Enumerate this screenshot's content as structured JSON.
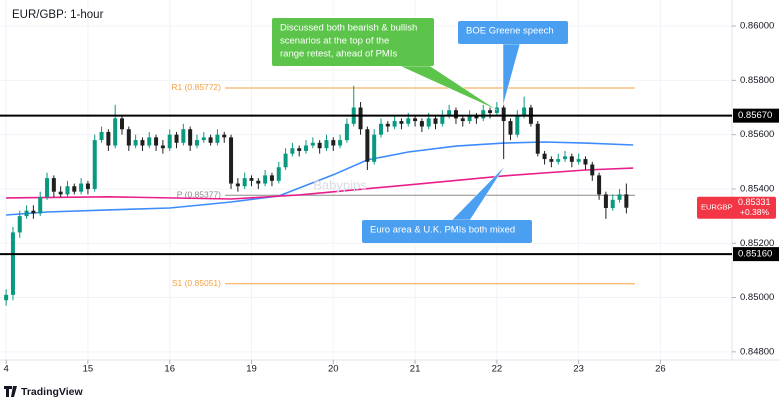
{
  "chart_data": {
    "type": "candlestick",
    "title": "EUR/GBP: 1-hour",
    "watermark": "Babypips",
    "branding": "TradingView",
    "x": [
      0,
      2,
      4,
      6,
      8,
      10,
      12,
      14,
      16,
      18,
      20,
      22,
      24,
      26,
      28,
      30,
      32,
      34,
      36,
      38,
      40,
      42,
      44,
      46,
      48,
      50,
      52,
      54,
      56,
      58,
      60,
      62,
      64,
      66,
      68,
      70,
      72,
      74,
      76,
      78,
      80,
      82,
      84,
      86,
      88,
      90,
      92,
      94,
      96,
      98,
      100,
      102,
      104,
      106,
      108,
      110,
      112,
      114,
      116,
      118,
      120,
      122,
      124,
      126,
      128,
      130,
      132,
      134,
      136,
      138,
      140,
      142,
      144,
      146,
      148,
      150,
      152,
      154,
      156,
      158,
      160,
      162,
      164,
      166,
      168,
      170,
      172,
      174,
      176,
      178,
      180,
      182
    ],
    "open": [
      0.8499,
      0.8501,
      0.8524,
      0.853,
      0.8532,
      0.8531,
      0.8537,
      0.8544,
      0.8539,
      0.8538,
      0.8541,
      0.8539,
      0.8542,
      0.854,
      0.8558,
      0.8561,
      0.8556,
      0.8566,
      0.8562,
      0.8556,
      0.8558,
      0.8556,
      0.8559,
      0.8556,
      0.8555,
      0.856,
      0.8557,
      0.8562,
      0.8556,
      0.8558,
      0.8559,
      0.8557,
      0.856,
      0.8559,
      0.8542,
      0.8541,
      0.8544,
      0.8543,
      0.8542,
      0.8545,
      0.8543,
      0.8548,
      0.8553,
      0.8555,
      0.8554,
      0.8556,
      0.8557,
      0.8555,
      0.8558,
      0.8556,
      0.8558,
      0.8564,
      0.857,
      0.8562,
      0.855,
      0.856,
      0.8564,
      0.8563,
      0.8565,
      0.8564,
      0.8566,
      0.8565,
      0.8563,
      0.8566,
      0.8564,
      0.8567,
      0.8569,
      0.8566,
      0.8565,
      0.8567,
      0.8566,
      0.8569,
      0.8568,
      0.857,
      0.8565,
      0.856,
      0.8567,
      0.857,
      0.8564,
      0.8553,
      0.8551,
      0.855,
      0.8551,
      0.8552,
      0.855,
      0.8551,
      0.8549,
      0.8545,
      0.8538,
      0.8533,
      0.8536,
      0.8538
    ],
    "high": [
      0.8503,
      0.8526,
      0.8532,
      0.8534,
      0.8534,
      0.8539,
      0.8546,
      0.8545,
      0.8541,
      0.8543,
      0.8542,
      0.8544,
      0.8543,
      0.856,
      0.8563,
      0.8562,
      0.8571,
      0.8567,
      0.8563,
      0.856,
      0.8559,
      0.8561,
      0.856,
      0.8558,
      0.8562,
      0.8561,
      0.8564,
      0.8563,
      0.856,
      0.8561,
      0.856,
      0.8562,
      0.8561,
      0.856,
      0.8544,
      0.8546,
      0.8545,
      0.8544,
      0.8547,
      0.8546,
      0.855,
      0.8555,
      0.8557,
      0.8556,
      0.8558,
      0.8559,
      0.8558,
      0.856,
      0.8559,
      0.856,
      0.8566,
      0.8578,
      0.8572,
      0.8563,
      0.8562,
      0.8566,
      0.8565,
      0.8567,
      0.8566,
      0.8568,
      0.8567,
      0.8566,
      0.8568,
      0.8567,
      0.8569,
      0.8571,
      0.857,
      0.8567,
      0.8569,
      0.8568,
      0.8571,
      0.857,
      0.8572,
      0.8571,
      0.8566,
      0.8569,
      0.8574,
      0.8571,
      0.8565,
      0.8554,
      0.8552,
      0.8553,
      0.8554,
      0.8553,
      0.8553,
      0.8552,
      0.855,
      0.8546,
      0.8539,
      0.8538,
      0.854,
      0.8542
    ],
    "low": [
      0.8497,
      0.8499,
      0.8522,
      0.8529,
      0.8529,
      0.853,
      0.8536,
      0.8537,
      0.8537,
      0.8537,
      0.8538,
      0.8538,
      0.8538,
      0.8539,
      0.8557,
      0.8554,
      0.8555,
      0.856,
      0.8554,
      0.8555,
      0.8554,
      0.8555,
      0.8554,
      0.8553,
      0.8554,
      0.8555,
      0.8556,
      0.8554,
      0.8555,
      0.8557,
      0.8556,
      0.8556,
      0.8557,
      0.854,
      0.8539,
      0.854,
      0.8541,
      0.854,
      0.8541,
      0.8541,
      0.8542,
      0.8547,
      0.8552,
      0.8552,
      0.8553,
      0.8555,
      0.8553,
      0.8554,
      0.8554,
      0.8555,
      0.8557,
      0.8563,
      0.856,
      0.8547,
      0.8549,
      0.8559,
      0.8561,
      0.8562,
      0.8562,
      0.8563,
      0.8563,
      0.8561,
      0.8562,
      0.8562,
      0.8563,
      0.8566,
      0.8564,
      0.8563,
      0.8564,
      0.8564,
      0.8565,
      0.8566,
      0.8567,
      0.8551,
      0.8558,
      0.8559,
      0.8566,
      0.8563,
      0.8552,
      0.8549,
      0.8548,
      0.8549,
      0.855,
      0.8548,
      0.8549,
      0.8547,
      0.8543,
      0.8536,
      0.8529,
      0.8532,
      0.8535,
      0.8531
    ],
    "close": [
      0.8501,
      0.8524,
      0.853,
      0.8532,
      0.8531,
      0.8537,
      0.8544,
      0.8539,
      0.8538,
      0.8541,
      0.8539,
      0.8542,
      0.854,
      0.8558,
      0.8561,
      0.8556,
      0.8566,
      0.8562,
      0.8556,
      0.8558,
      0.8556,
      0.8559,
      0.8556,
      0.8555,
      0.856,
      0.8557,
      0.8562,
      0.8556,
      0.8558,
      0.8559,
      0.8557,
      0.856,
      0.8559,
      0.8542,
      0.8541,
      0.8544,
      0.8543,
      0.8542,
      0.8545,
      0.8543,
      0.8548,
      0.8553,
      0.8555,
      0.8554,
      0.8556,
      0.8557,
      0.8555,
      0.8558,
      0.8556,
      0.8558,
      0.8564,
      0.857,
      0.8562,
      0.855,
      0.856,
      0.8564,
      0.8563,
      0.8565,
      0.8564,
      0.8566,
      0.8565,
      0.8563,
      0.8566,
      0.8564,
      0.8567,
      0.8569,
      0.8566,
      0.8565,
      0.8567,
      0.8566,
      0.8569,
      0.8568,
      0.857,
      0.8565,
      0.856,
      0.8567,
      0.857,
      0.8564,
      0.8553,
      0.8551,
      0.855,
      0.8551,
      0.8552,
      0.855,
      0.8551,
      0.8549,
      0.8545,
      0.8538,
      0.8533,
      0.8536,
      0.8538,
      0.85331
    ],
    "up_color": "#089981",
    "down_color": "#1f1f1f",
    "xlim": [
      -1.8,
      213
    ],
    "xticks": [
      {
        "value": 0,
        "label": "4"
      },
      {
        "value": 24,
        "label": "15"
      },
      {
        "value": 48,
        "label": "16"
      },
      {
        "value": 72,
        "label": "19"
      },
      {
        "value": 96,
        "label": "20"
      },
      {
        "value": 120,
        "label": "21"
      },
      {
        "value": 144,
        "label": "22"
      },
      {
        "value": 168,
        "label": "23"
      },
      {
        "value": 192,
        "label": "26"
      }
    ],
    "ylim": [
      0.8477,
      0.86096
    ],
    "yticks": [
      {
        "value": 0.848,
        "label": "0.84800"
      },
      {
        "value": 0.85,
        "label": "0.85000"
      },
      {
        "value": 0.852,
        "label": "0.85200"
      },
      {
        "value": 0.854,
        "label": "0.85400"
      },
      {
        "value": 0.856,
        "label": "0.85600"
      },
      {
        "value": 0.858,
        "label": "0.85800"
      },
      {
        "value": 0.86,
        "label": "0.86000"
      }
    ],
    "grid": true,
    "moving_averages": [
      {
        "color": "#3d8bfd",
        "x": [
          0,
          12,
          30,
          48,
          66,
          80,
          96,
          106,
          118,
          132,
          146,
          158,
          170,
          184
        ],
        "values": [
          0.85304,
          0.85315,
          0.85323,
          0.8533,
          0.85352,
          0.85374,
          0.85452,
          0.85507,
          0.85536,
          0.85558,
          0.85569,
          0.85573,
          0.85569,
          0.85562
        ]
      },
      {
        "color": "#e91e8c",
        "x": [
          0,
          30,
          66,
          86,
          118,
          146,
          170,
          184
        ],
        "values": [
          0.85367,
          0.85371,
          0.85363,
          0.85378,
          0.85415,
          0.85448,
          0.8547,
          0.85477
        ]
      }
    ],
    "levels": [
      {
        "label": "R1 (0.85772)",
        "value": 0.85772,
        "color": "#f5a142"
      },
      {
        "label": "P (0.85377)",
        "value": 0.85377,
        "color": "#8a8a8a"
      },
      {
        "label": "S1 (0.85051)",
        "value": 0.85051,
        "color": "#f5a142"
      }
    ],
    "key_levels": [
      {
        "value": 0.8567,
        "label": "0.85670"
      },
      {
        "value": 0.8516,
        "label": "0.85160"
      }
    ],
    "key_level_color": "#000000",
    "last_price": {
      "symbol": "EURGBP",
      "value": 0.85331,
      "label": "0.85331",
      "change": {
        "value": 0.38,
        "label": "+0.38%"
      },
      "color": "#f23645"
    },
    "annotations": [
      {
        "text": [
          "Discussed both bearish & bullish",
          "scenarios  at the top of the",
          "range retest, ahead of PMIs"
        ],
        "color": "#5cc44a"
      },
      {
        "text": [
          "BOE Greene speech"
        ],
        "color": "#4a9ff0"
      },
      {
        "text": [
          "Euro area & U.K. PMIs both mixed"
        ],
        "color": "#4a9ff0"
      }
    ]
  }
}
